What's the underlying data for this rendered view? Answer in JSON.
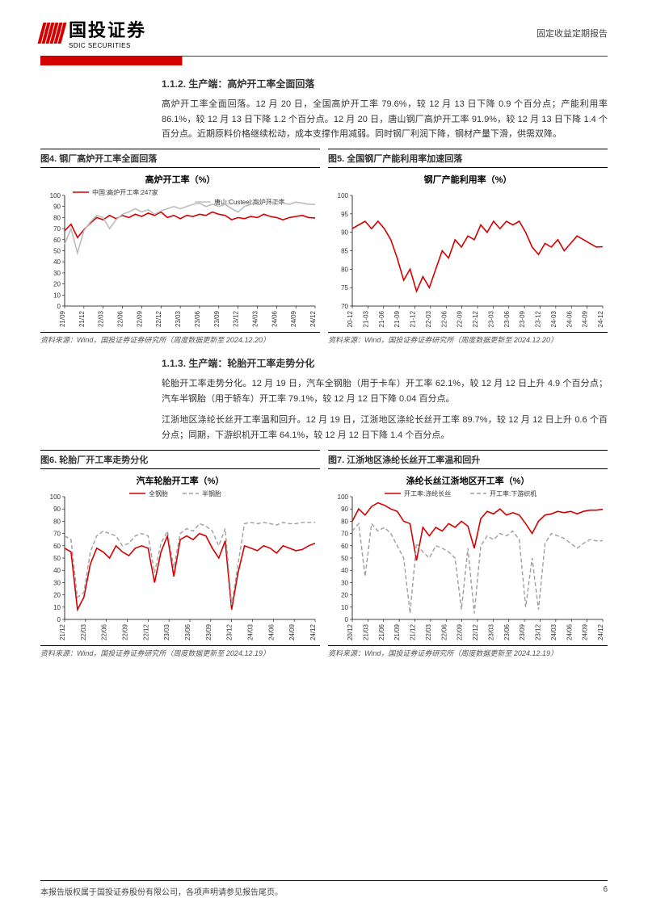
{
  "header": {
    "company_cn": "国投证券",
    "company_en": "SDIC SECURITIES",
    "doc_type": "固定收益定期报告"
  },
  "footer": {
    "copyright": "本报告版权属于国投证券股份有限公司，各项声明请参见报告尾页。",
    "page": "6"
  },
  "section_112": {
    "heading": "1.1.2. 生产端：高炉开工率全面回落",
    "para": "高炉开工率全面回落。12 月 20 日，全国高炉开工率 79.6%，较 12 月 13 日下降 0.9 个百分点；产能利用率 86.1%，较 12 月 13 日下降 1.2 个百分点。12 月 20 日，唐山钢厂高炉开工率 91.9%，较 12 月 13 日下降 1.4 个百分点。近期原料价格继续松动，成本支撑作用减弱。同时钢厂利润下降，钢材产量下滑，供需双降。"
  },
  "section_113": {
    "heading": "1.1.3. 生产端：轮胎开工率走势分化",
    "para1": "轮胎开工率走势分化。12 月 19 日，汽车全钢胎（用于卡车）开工率 62.1%，较 12 月 12 日上升 4.9 个百分点；汽车半钢胎（用于轿车）开工率 79.1%，较 12 月 12 日下降 0.04 百分点。",
    "para2": "江浙地区涤纶长丝开工率温和回升。12 月 19 日，江浙地区涤纶长丝开工率 89.7%，较 12 月 12 日上升 0.6 个百分点；同期，下游织机开工率 64.1%，较 12 月 12 日下降 1.4 个百分点。"
  },
  "fig4": {
    "caption": "图4. 钢厂高炉开工率全面回落",
    "title": "高炉开工率（%）",
    "legend": [
      "中国:高炉开工率:247家",
      "唐山:Custeel:高炉开工率"
    ],
    "source": "资料来源：Wind，国投证券证券研究所（周度数据更新至 2024.12.20）",
    "type": "line",
    "ylim": [
      0,
      100
    ],
    "ytick_step": 10,
    "xticks": [
      "21/09",
      "21/12",
      "22/03",
      "22/06",
      "22/09",
      "22/12",
      "23/03",
      "23/06",
      "23/09",
      "23/12",
      "24/03",
      "24/06",
      "24/09",
      "24/12"
    ],
    "series": [
      {
        "name": "china",
        "color": "#d40000",
        "width": 1.6,
        "dash": "none",
        "values": [
          68,
          74,
          62,
          69,
          75,
          80,
          78,
          82,
          79,
          82,
          80,
          83,
          81,
          84,
          82,
          85,
          80,
          82,
          79,
          82,
          81,
          83,
          82,
          85,
          83,
          82,
          78,
          80,
          79,
          81,
          80,
          83,
          81,
          80,
          78,
          80,
          81,
          82,
          80,
          79.6
        ]
      },
      {
        "name": "tangshan",
        "color": "#bdbdbd",
        "width": 1.6,
        "dash": "none",
        "values": [
          56,
          70,
          48,
          68,
          76,
          82,
          80,
          70,
          78,
          83,
          85,
          88,
          85,
          87,
          83,
          86,
          88,
          90,
          88,
          90,
          92,
          93,
          90,
          92,
          90,
          92,
          88,
          85,
          90,
          92,
          95,
          95,
          93,
          95,
          93,
          92,
          94,
          93,
          92,
          91.9
        ]
      }
    ],
    "bg": "#ffffff"
  },
  "fig5": {
    "caption": "图5. 全国钢厂产能利用率加速回落",
    "title": "钢厂产能利用率（%）",
    "source": "资料来源：Wind，国投证券证券研究所（周度数据更新至 2024.12.20）",
    "type": "line",
    "ylim": [
      70,
      100
    ],
    "ytick_step": 5,
    "xticks": [
      "20-12",
      "21-03",
      "21-06",
      "21-09",
      "21-12",
      "22-03",
      "22-06",
      "22-09",
      "22-12",
      "23-03",
      "23-06",
      "23-09",
      "23-12",
      "24-03",
      "24-06",
      "24-09",
      "24-12"
    ],
    "series": [
      {
        "name": "util",
        "color": "#d40000",
        "width": 1.6,
        "dash": "none",
        "values": [
          91,
          92,
          93,
          91,
          93,
          91,
          88,
          83,
          77,
          80,
          74,
          78,
          75,
          80,
          85,
          83,
          88,
          86,
          89,
          88,
          92,
          90,
          93,
          91,
          93,
          92,
          93,
          90,
          86,
          84,
          87,
          86,
          88,
          85,
          87,
          89,
          88,
          87,
          86,
          86.1
        ]
      }
    ],
    "bg": "#ffffff"
  },
  "fig6": {
    "caption": "图6. 轮胎厂开工率走势分化",
    "title": "汽车轮胎开工率（%）",
    "legend": [
      "全钢胎",
      "半钢胎"
    ],
    "source": "资料来源：Wind，国投证券证券研究所（周度数据更新至 2024.12.19）",
    "type": "line",
    "ylim": [
      0,
      100
    ],
    "ytick_step": 10,
    "xticks": [
      "21/12",
      "22/03",
      "22/06",
      "22/09",
      "22/12",
      "23/03",
      "23/06",
      "23/09",
      "23/12",
      "24/03",
      "24/06",
      "24/09",
      "24/12"
    ],
    "series": [
      {
        "name": "full",
        "color": "#d40000",
        "width": 1.6,
        "dash": "none",
        "values": [
          58,
          55,
          8,
          18,
          45,
          58,
          55,
          50,
          60,
          55,
          52,
          58,
          60,
          58,
          30,
          55,
          68,
          35,
          65,
          68,
          65,
          70,
          68,
          58,
          50,
          64,
          8,
          38,
          60,
          58,
          56,
          60,
          58,
          54,
          60,
          58,
          56,
          57,
          60,
          62.1
        ]
      },
      {
        "name": "half",
        "color": "#9e9e9e",
        "width": 1.4,
        "dash": "5,3",
        "values": [
          68,
          65,
          18,
          22,
          55,
          68,
          72,
          70,
          68,
          60,
          62,
          68,
          70,
          68,
          38,
          62,
          72,
          42,
          70,
          74,
          72,
          78,
          76,
          72,
          60,
          74,
          12,
          45,
          78,
          79,
          78,
          79,
          78,
          77,
          79,
          78,
          78,
          79,
          79,
          79.1
        ]
      }
    ],
    "bg": "#ffffff"
  },
  "fig7": {
    "caption": "图7. 江浙地区涤纶长丝开工率温和回升",
    "title": "涤纶长丝江浙地区开工率（%）",
    "legend": [
      "开工率:涤纶长丝",
      "开工率:下游织机"
    ],
    "source": "资料来源：Wind，国投证券证券研究所（周度数据更新至 2024.12.19）",
    "type": "line",
    "ylim": [
      0,
      100
    ],
    "ytick_step": 10,
    "xticks": [
      "20/12",
      "21/03",
      "21/06",
      "21/09",
      "21/12",
      "22/03",
      "22/06",
      "22/09",
      "22/12",
      "23/03",
      "23/06",
      "23/09",
      "23/12",
      "24/03",
      "24/06",
      "24/09",
      "24/12"
    ],
    "series": [
      {
        "name": "poly",
        "color": "#d40000",
        "width": 1.6,
        "dash": "none",
        "values": [
          80,
          90,
          85,
          92,
          95,
          93,
          90,
          88,
          80,
          78,
          48,
          75,
          68,
          75,
          72,
          78,
          75,
          80,
          76,
          58,
          82,
          88,
          86,
          90,
          85,
          87,
          85,
          78,
          70,
          80,
          85,
          86,
          88,
          87,
          88,
          86,
          88,
          89,
          89,
          89.7
        ]
      },
      {
        "name": "loom",
        "color": "#9e9e9e",
        "width": 1.4,
        "dash": "5,3",
        "values": [
          72,
          78,
          35,
          78,
          72,
          75,
          70,
          60,
          50,
          5,
          62,
          55,
          50,
          60,
          58,
          55,
          50,
          8,
          58,
          5,
          60,
          68,
          65,
          70,
          68,
          72,
          65,
          10,
          50,
          8,
          62,
          70,
          68,
          66,
          62,
          58,
          62,
          65,
          64,
          64.1
        ]
      }
    ],
    "bg": "#ffffff"
  }
}
